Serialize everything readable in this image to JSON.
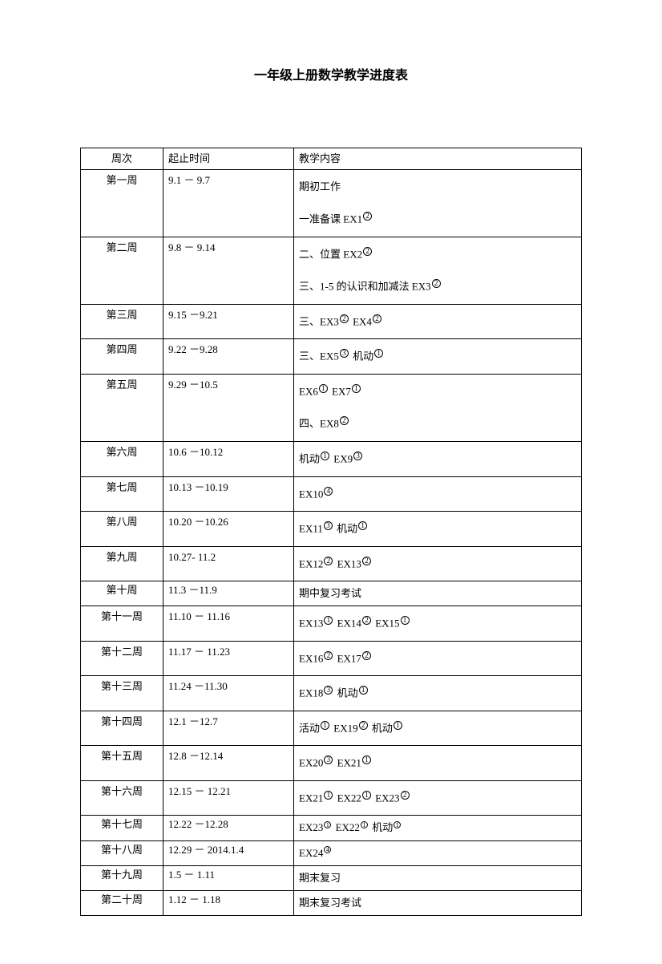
{
  "title": "一年级上册数学教学进度表",
  "table": {
    "headers": {
      "week": "周次",
      "dates": "起止时间",
      "content": "教学内容"
    },
    "rows": [
      {
        "week": "第一周",
        "dates": "9.1 － 9.7",
        "content": [
          {
            "segments": [
              {
                "t": "期初工作"
              }
            ]
          },
          {
            "spacer": true
          },
          {
            "segments": [
              {
                "t": "一准备课 EX1"
              },
              {
                "sup": "2"
              }
            ]
          }
        ]
      },
      {
        "week": "第二周",
        "dates": "9.8 － 9.14",
        "content": [
          {
            "segments": [
              {
                "t": "二、位置 EX2"
              },
              {
                "sup": "2"
              }
            ]
          },
          {
            "spacer": true
          },
          {
            "segments": [
              {
                "t": "三、1-5 的认识和加减法 EX3"
              },
              {
                "sup": "2"
              }
            ]
          }
        ]
      },
      {
        "week": "第三周",
        "dates": "9.15 －9.21",
        "content": [
          {
            "segments": [
              {
                "t": "三、EX3"
              },
              {
                "sup": "2"
              },
              {
                "t": "  EX4"
              },
              {
                "sup": "2"
              }
            ]
          }
        ]
      },
      {
        "week": "第四周",
        "dates": "9.22 －9.28",
        "content": [
          {
            "segments": [
              {
                "t": "三、EX5"
              },
              {
                "sup": "3"
              },
              {
                "t": "  机动"
              },
              {
                "sup": "1"
              }
            ]
          }
        ]
      },
      {
        "week": "第五周",
        "dates": "9.29 －10.5",
        "content": [
          {
            "segments": [
              {
                "t": "EX6"
              },
              {
                "sup": "1"
              },
              {
                "t": "   EX7"
              },
              {
                "sup": "1"
              }
            ]
          },
          {
            "spacer": true
          },
          {
            "segments": [
              {
                "t": "四、EX8"
              },
              {
                "sup": "2"
              }
            ]
          }
        ]
      },
      {
        "week": "第六周",
        "dates": "10.6 －10.12",
        "content": [
          {
            "segments": [
              {
                "t": "机动"
              },
              {
                "sup": "1"
              },
              {
                "t": "  EX9"
              },
              {
                "sup": "3"
              }
            ]
          }
        ]
      },
      {
        "week": "第七周",
        "dates": "10.13 －10.19",
        "content": [
          {
            "segments": [
              {
                "t": "EX10"
              },
              {
                "sup": "4"
              }
            ]
          }
        ]
      },
      {
        "week": "第八周",
        "dates": "10.20 －10.26",
        "content": [
          {
            "segments": [
              {
                "t": "EX11"
              },
              {
                "sup": "3"
              },
              {
                "t": "  机动"
              },
              {
                "sup": "1"
              }
            ]
          }
        ]
      },
      {
        "week": "第九周",
        "dates": "10.27- 11.2",
        "content": [
          {
            "segments": [
              {
                "t": "EX12"
              },
              {
                "sup": "2"
              },
              {
                "t": "  EX13"
              },
              {
                "sup": "2"
              }
            ]
          }
        ]
      },
      {
        "week": "第十周",
        "dates": "11.3 －11.9",
        "short": true,
        "content": [
          {
            "segments": [
              {
                "t": "期中复习考试"
              }
            ]
          }
        ]
      },
      {
        "week": "第十一周",
        "dates": "11.10 － 11.16",
        "content": [
          {
            "segments": [
              {
                "t": "EX13"
              },
              {
                "sup": "1"
              },
              {
                "t": "  EX14"
              },
              {
                "sup": "2"
              },
              {
                "t": "  EX15"
              },
              {
                "sup": "1"
              }
            ]
          }
        ]
      },
      {
        "week": "第十二周",
        "dates": "11.17 － 11.23",
        "content": [
          {
            "segments": [
              {
                "t": "EX16"
              },
              {
                "sup": "2"
              },
              {
                "t": "  EX17"
              },
              {
                "sup": "2"
              }
            ]
          }
        ]
      },
      {
        "week": "第十三周",
        "dates": "  11.24 －11.30",
        "content": [
          {
            "segments": [
              {
                "t": "EX18"
              },
              {
                "sup": "3"
              },
              {
                "t": "   机动"
              },
              {
                "sup": "1"
              }
            ]
          }
        ]
      },
      {
        "week": "第十四周",
        "dates": "12.1 －12.7",
        "content": [
          {
            "segments": [
              {
                "t": "活动"
              },
              {
                "sup": "1"
              },
              {
                "t": "  EX19"
              },
              {
                "sup": "2"
              },
              {
                "t": "  机动"
              },
              {
                "sup": "1"
              }
            ]
          }
        ]
      },
      {
        "week": "第十五周",
        "dates": "12.8 －12.14",
        "content": [
          {
            "segments": [
              {
                "t": "EX20"
              },
              {
                "sup": "3"
              },
              {
                "t": "  EX21"
              },
              {
                "sup": "1"
              }
            ]
          }
        ]
      },
      {
        "week": "第十六周",
        "dates": "12.15 － 12.21",
        "content": [
          {
            "segments": [
              {
                "t": "EX21"
              },
              {
                "sup": "1"
              },
              {
                "t": "  EX22"
              },
              {
                "sup": "1"
              },
              {
                "t": "  EX23"
              },
              {
                "sup": "2"
              }
            ]
          }
        ]
      },
      {
        "week": "第十七周",
        "dates": "12.22 －12.28",
        "short": true,
        "small": true,
        "content": [
          {
            "segments": [
              {
                "t": "EX23"
              },
              {
                "supSmall": "1"
              },
              {
                "t": " EX22"
              },
              {
                "supSmall": "1"
              },
              {
                "t": "   机动"
              },
              {
                "supSmall": "1"
              }
            ]
          }
        ]
      },
      {
        "week": "第十八周",
        "dates": "12.29 － 2014.1.4",
        "short": true,
        "small": true,
        "content": [
          {
            "segments": [
              {
                "t": "EX24"
              },
              {
                "supSmall": "4"
              }
            ]
          }
        ]
      },
      {
        "week": "第十九周",
        "dates": "1.5 － 1.11",
        "short": true,
        "content": [
          {
            "segments": [
              {
                "t": "期末复习"
              }
            ]
          }
        ]
      },
      {
        "week": "第二十周",
        "dates": "1.12 － 1.18",
        "short": true,
        "content": [
          {
            "segments": [
              {
                "t": "期末复习考试"
              }
            ]
          }
        ]
      }
    ]
  }
}
